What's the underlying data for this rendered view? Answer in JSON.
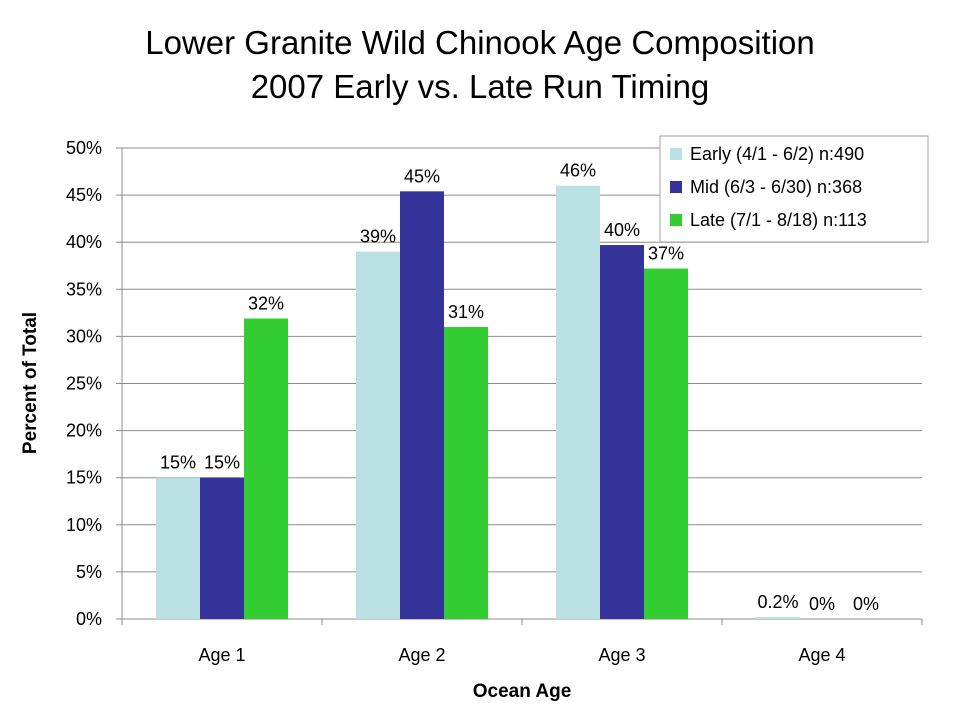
{
  "chart_data": {
    "type": "bar",
    "title": "Lower Granite Wild Chinook Age Composition",
    "subtitle": "2007 Early vs. Late Run Timing",
    "xlabel": "Ocean Age",
    "ylabel": "Percent of Total",
    "categories": [
      "Age 1",
      "Age 2",
      "Age 3",
      "Age 4"
    ],
    "ylim": [
      0,
      50
    ],
    "y_ticks": [
      "0%",
      "5%",
      "10%",
      "15%",
      "20%",
      "25%",
      "30%",
      "35%",
      "40%",
      "45%",
      "50%"
    ],
    "grid": true,
    "legend_position": "top-right",
    "series": [
      {
        "name": "Early (4/1 - 6/2) n:490",
        "color": "#b9e1e3",
        "values": [
          15,
          39,
          46,
          0.2
        ],
        "labels": [
          "15%",
          "39%",
          "46%",
          "0.2%"
        ]
      },
      {
        "name": "Mid (6/3 - 6/30) n:368",
        "color": "#33339a",
        "values": [
          15,
          45.4,
          39.7,
          0
        ],
        "labels": [
          "15%",
          "45%",
          "40%",
          "0%"
        ]
      },
      {
        "name": "Late (7/1 - 8/18) n:113",
        "color": "#33cc33",
        "values": [
          31.9,
          31,
          37.2,
          0
        ],
        "labels": [
          "32%",
          "31%",
          "37%",
          "0%"
        ]
      }
    ]
  }
}
